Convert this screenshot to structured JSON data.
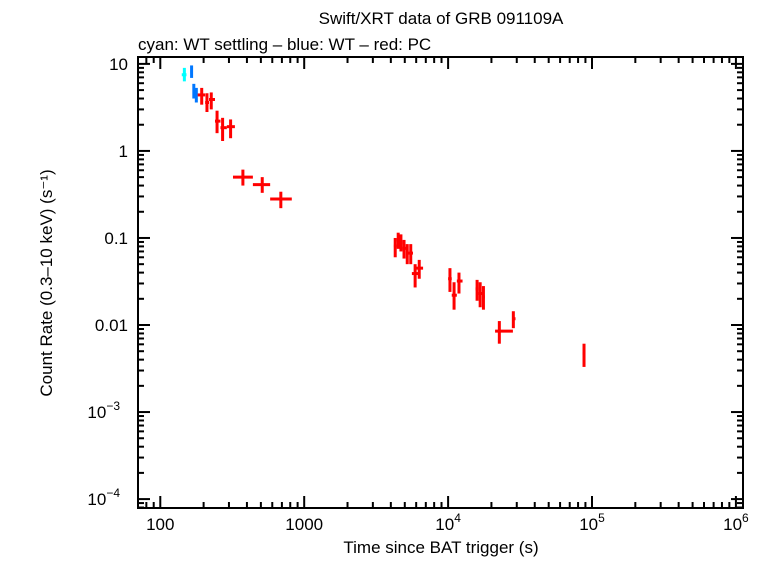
{
  "chart_data": {
    "type": "scatter",
    "title": "Swift/XRT data of GRB 091109A",
    "subtitle": "cyan: WT settling – blue: WT – red: PC",
    "xlabel": "Time since BAT trigger (s)",
    "ylabel": "Count Rate (0.3–10 keV) (s⁻¹)",
    "xscale": "log",
    "yscale": "log",
    "xlim": [
      70,
      1120000
    ],
    "ylim": [
      7.9e-05,
      12
    ],
    "grid": false,
    "x_ticks": [
      {
        "v": 100,
        "label": "100"
      },
      {
        "v": 1000,
        "label": "1000"
      },
      {
        "v": 10000,
        "label": "10",
        "exp": "4"
      },
      {
        "v": 100000,
        "label": "10",
        "exp": "5"
      },
      {
        "v": 1000000,
        "label": "10",
        "exp": "6"
      }
    ],
    "y_ticks": [
      {
        "v": 10,
        "label": "10"
      },
      {
        "v": 1,
        "label": "1"
      },
      {
        "v": 0.1,
        "label": "0.1"
      },
      {
        "v": 0.01,
        "label": "0.01"
      },
      {
        "v": 0.001,
        "label": "10",
        "exp": "−3"
      },
      {
        "v": 0.0001,
        "label": "10",
        "exp": "−4"
      }
    ],
    "series": [
      {
        "color": "#00ffff",
        "points": [
          [
            147,
            141,
            152,
            7.5,
            6.3,
            9.0
          ]
        ]
      },
      {
        "color": "#0077ff",
        "points": [
          [
            165,
            162,
            168,
            8.1,
            6.9,
            9.6
          ],
          [
            171,
            168,
            174,
            4.9,
            4.0,
            5.9
          ],
          [
            178,
            174,
            182,
            4.4,
            3.6,
            5.3
          ]
        ]
      },
      {
        "color": "#ff0000",
        "points": [
          [
            194,
            182,
            205,
            4.4,
            3.4,
            5.3
          ],
          [
            211,
            205,
            218,
            3.6,
            2.8,
            4.6
          ],
          [
            226,
            218,
            240,
            3.9,
            3.0,
            4.7
          ],
          [
            248,
            240,
            262,
            2.2,
            1.6,
            2.9
          ],
          [
            271,
            262,
            290,
            1.85,
            1.3,
            2.4
          ],
          [
            308,
            290,
            330,
            1.9,
            1.4,
            2.3
          ],
          [
            375,
            320,
            440,
            0.5,
            0.4,
            0.61
          ],
          [
            511,
            440,
            580,
            0.41,
            0.33,
            0.5
          ],
          [
            688,
            580,
            820,
            0.28,
            0.22,
            0.34
          ],
          [
            4290,
            4200,
            4400,
            0.081,
            0.06,
            0.1
          ],
          [
            4500,
            4400,
            4600,
            0.095,
            0.075,
            0.115
          ],
          [
            4700,
            4600,
            4800,
            0.088,
            0.07,
            0.11
          ],
          [
            4940,
            4800,
            5100,
            0.076,
            0.058,
            0.095
          ],
          [
            5200,
            5100,
            5400,
            0.067,
            0.05,
            0.085
          ],
          [
            5500,
            5400,
            5700,
            0.067,
            0.05,
            0.085
          ],
          [
            5900,
            5600,
            6200,
            0.039,
            0.027,
            0.05
          ],
          [
            6300,
            6000,
            6700,
            0.045,
            0.034,
            0.056
          ],
          [
            10300,
            10000,
            10600,
            0.034,
            0.024,
            0.045
          ],
          [
            11000,
            10600,
            11500,
            0.022,
            0.015,
            0.031
          ],
          [
            11900,
            11500,
            12600,
            0.032,
            0.023,
            0.04
          ],
          [
            15900,
            15500,
            16300,
            0.026,
            0.019,
            0.033
          ],
          [
            16700,
            16300,
            17200,
            0.023,
            0.016,
            0.031
          ],
          [
            17600,
            17200,
            18000,
            0.021,
            0.015,
            0.028
          ],
          [
            22700,
            21200,
            28200,
            0.0085,
            0.0061,
            0.0111
          ],
          [
            28400,
            27800,
            29400,
            0.0118,
            0.0092,
            0.0144
          ],
          [
            88000,
            86000,
            90000,
            0.0047,
            0.0033,
            0.0061
          ]
        ]
      }
    ]
  }
}
